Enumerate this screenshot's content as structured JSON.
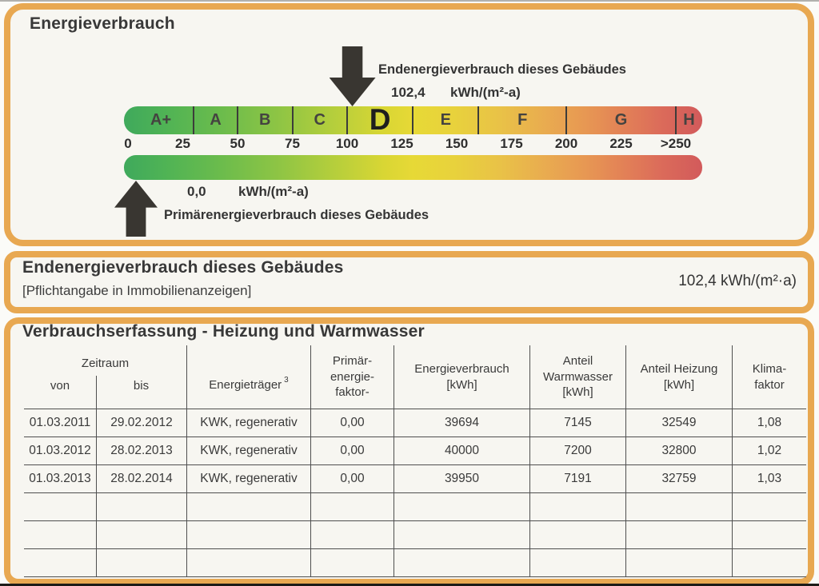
{
  "colors": {
    "border_orange": "#e8a851",
    "panel_bg": "#f7f6f1",
    "ink": "#3a3a3a",
    "arrow_black": "#393631",
    "gradient_green": "#3fa95c",
    "gradient_yellow": "#e7d936",
    "gradient_orange": "#e9ab50",
    "gradient_red": "#d25a5b"
  },
  "panel1": {
    "title": "Energieverbrauch",
    "end_label": "Endenergieverbrauch dieses Gebäudes",
    "end_value": "102,4",
    "end_unit": "kWh/(m²-a)",
    "primary_value": "0,0",
    "primary_unit": "kWh/(m²-a)",
    "primary_label": "Primärenergieverbrauch dieses Gebäudes",
    "scale": {
      "end_value_num": 102.4,
      "primary_value_num": 0.0,
      "axis_max": 262,
      "bands": [
        {
          "label": "A+",
          "from": 0,
          "to": 30
        },
        {
          "label": "A",
          "from": 30,
          "to": 50
        },
        {
          "label": "B",
          "from": 50,
          "to": 75
        },
        {
          "label": "C",
          "from": 75,
          "to": 100
        },
        {
          "label": "D",
          "from": 100,
          "to": 130,
          "current": true
        },
        {
          "label": "E",
          "from": 130,
          "to": 160
        },
        {
          "label": "F",
          "from": 160,
          "to": 200
        },
        {
          "label": "G",
          "from": 200,
          "to": 250
        },
        {
          "label": "H",
          "from": 250,
          "to": 262
        }
      ],
      "ticks": [
        {
          "value": 0,
          "label": "0"
        },
        {
          "value": 25,
          "label": "25"
        },
        {
          "value": 50,
          "label": "50"
        },
        {
          "value": 75,
          "label": "75"
        },
        {
          "value": 100,
          "label": "100"
        },
        {
          "value": 125,
          "label": "125"
        },
        {
          "value": 150,
          "label": "150"
        },
        {
          "value": 175,
          "label": "175"
        },
        {
          "value": 200,
          "label": "200"
        },
        {
          "value": 225,
          "label": "225"
        },
        {
          "value": 250,
          "label": ">250"
        }
      ]
    }
  },
  "panel2": {
    "title": "Endenergieverbrauch dieses Gebäudes",
    "subtitle": "[Pflichtangabe in Immobilienanzeigen]",
    "value": "102,4 kWh/(m²·a)"
  },
  "panel3": {
    "title": "Verbrauchserfassung - Heizung und Warmwasser",
    "table": {
      "header": {
        "zeitraum": "Zeitraum",
        "von": "von",
        "bis": "bis",
        "energietraeger": "Energieträger",
        "energietraeger_sup": "3",
        "primaerenergiefaktor": "Primär-\nenergie-\nfaktor-",
        "energieverbrauch": "Energieverbrauch\n[kWh]",
        "anteil_warmwasser": "Anteil\nWarmwasser\n[kWh]",
        "anteil_heizung": "Anteil Heizung\n[kWh]",
        "klimafaktor": "Klima-\nfaktor"
      },
      "rows": [
        [
          "01.03.2011",
          "29.02.2012",
          "KWK, regenerativ",
          "0,00",
          "39694",
          "7145",
          "32549",
          "1,08"
        ],
        [
          "01.03.2012",
          "28.02.2013",
          "KWK, regenerativ",
          "0,00",
          "40000",
          "7200",
          "32800",
          "1,02"
        ],
        [
          "01.03.2013",
          "28.02.2014",
          "KWK, regenerativ",
          "0,00",
          "39950",
          "7191",
          "32759",
          "1,03"
        ],
        [
          "",
          "",
          "",
          "",
          "",
          "",
          "",
          ""
        ],
        [
          "",
          "",
          "",
          "",
          "",
          "",
          "",
          ""
        ],
        [
          "",
          "",
          "",
          "",
          "",
          "",
          "",
          ""
        ]
      ]
    }
  }
}
